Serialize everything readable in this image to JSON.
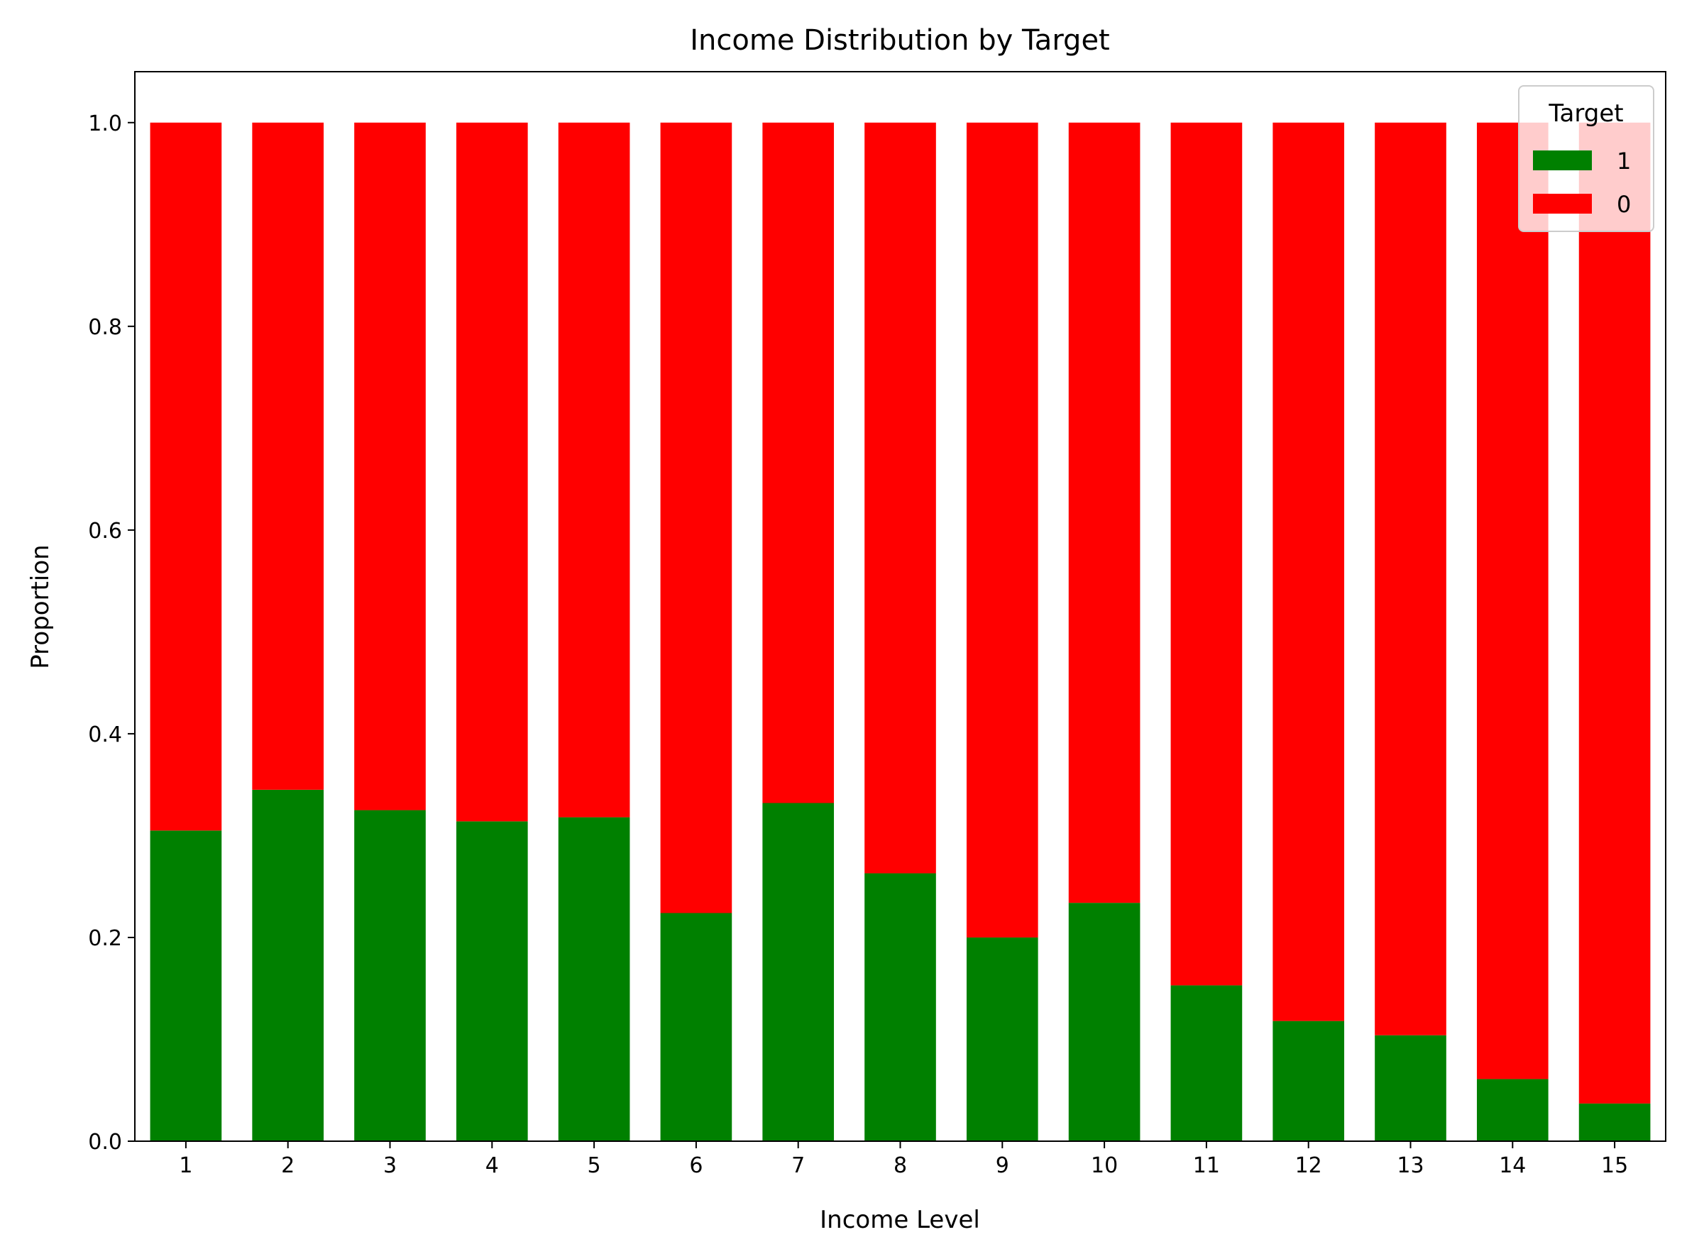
{
  "chart_data": {
    "type": "bar",
    "stacked": true,
    "title": "Income Distribution by Target",
    "xlabel": "Income Level",
    "ylabel": "Proportion",
    "ylim": [
      0,
      1.05
    ],
    "yticks": [
      "0.0",
      "0.2",
      "0.4",
      "0.6",
      "0.8",
      "1.0"
    ],
    "categories": [
      "1",
      "2",
      "3",
      "4",
      "5",
      "6",
      "7",
      "8",
      "9",
      "10",
      "11",
      "12",
      "13",
      "14",
      "15"
    ],
    "series": [
      {
        "name": "1",
        "color": "#008000",
        "values": [
          0.305,
          0.345,
          0.325,
          0.314,
          0.318,
          0.224,
          0.332,
          0.263,
          0.2,
          0.234,
          0.153,
          0.118,
          0.104,
          0.061,
          0.037
        ]
      },
      {
        "name": "0",
        "color": "#ff0000",
        "values": [
          0.695,
          0.655,
          0.675,
          0.686,
          0.682,
          0.776,
          0.668,
          0.737,
          0.8,
          0.766,
          0.847,
          0.882,
          0.896,
          0.939,
          0.963
        ]
      }
    ],
    "legend": {
      "title": "Target",
      "position": "top-right"
    },
    "grid": false
  }
}
